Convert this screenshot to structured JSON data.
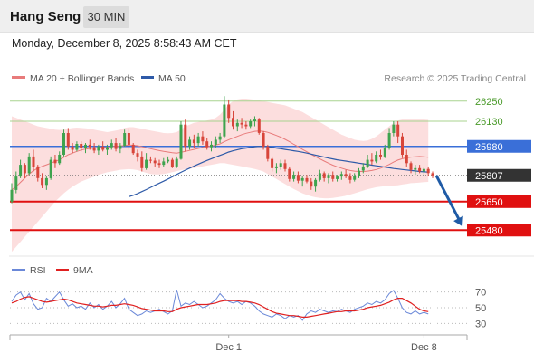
{
  "header": {
    "title": "Hang Seng",
    "timeframe": "30 MIN",
    "datetime": "Monday, December 8, 2025 8:58:43 AM CET"
  },
  "legend": {
    "ma20_bb": "MA 20 + Bollinger Bands",
    "ma50": "MA 50",
    "credit": "Research © 2025 Trading Central"
  },
  "rsi_legend": {
    "rsi": "RSI",
    "ma9": "9MA"
  },
  "colors": {
    "bull": "#3ea34e",
    "bear": "#d8453a",
    "ma20": "#e87b7b",
    "ma50": "#2e5aa8",
    "bollinger_fill": "#fbd8d8",
    "resistance": "#a8d38f",
    "pivot": "#3a6fd8",
    "support": "#e01010",
    "current": "#333333",
    "rsi": "#6a88d8",
    "rsi_ma": "#e02020",
    "arrow": "#1f5ba6"
  },
  "chart_data": [
    {
      "type": "candlestick",
      "x_labels": [
        "Dec 1",
        "Dec 8"
      ],
      "ylim": [
        25330,
        26330
      ],
      "grid": false,
      "levels": [
        {
          "value": 26250,
          "label": "26250",
          "kind": "resistance"
        },
        {
          "value": 26130,
          "label": "26130",
          "kind": "resistance"
        },
        {
          "value": 25980,
          "label": "25980",
          "kind": "pivot"
        },
        {
          "value": 25807,
          "label": "25807",
          "kind": "current"
        },
        {
          "value": 25650,
          "label": "25650",
          "kind": "support"
        },
        {
          "value": 25480,
          "label": "25480",
          "kind": "support"
        }
      ],
      "forecast": {
        "from": 25807,
        "to": 25480
      },
      "ohlc": [
        [
          25650,
          25760,
          25640,
          25720
        ],
        [
          25720,
          25830,
          25700,
          25800
        ],
        [
          25800,
          25900,
          25790,
          25870
        ],
        [
          25870,
          25880,
          25790,
          25820
        ],
        [
          25820,
          25940,
          25810,
          25920
        ],
        [
          25920,
          25960,
          25830,
          25860
        ],
        [
          25860,
          25870,
          25770,
          25790
        ],
        [
          25790,
          25820,
          25730,
          25750
        ],
        [
          25750,
          25800,
          25720,
          25790
        ],
        [
          25790,
          25920,
          25780,
          25900
        ],
        [
          25900,
          25930,
          25850,
          25880
        ],
        [
          25880,
          25950,
          25870,
          25930
        ],
        [
          25930,
          26080,
          25920,
          26060
        ],
        [
          26060,
          26090,
          25960,
          25980
        ],
        [
          25980,
          26000,
          25940,
          25960
        ],
        [
          25960,
          26010,
          25950,
          25995
        ],
        [
          25995,
          26010,
          25950,
          25970
        ],
        [
          25970,
          26000,
          25940,
          25990
        ],
        [
          25990,
          26020,
          25960,
          25975
        ],
        [
          25975,
          26000,
          25940,
          25955
        ],
        [
          25955,
          25990,
          25930,
          25980
        ],
        [
          25980,
          26010,
          25950,
          25960
        ],
        [
          25960,
          25990,
          25930,
          25975
        ],
        [
          25975,
          26020,
          25960,
          26000
        ],
        [
          26000,
          26030,
          25950,
          25965
        ],
        [
          25965,
          26000,
          25940,
          25985
        ],
        [
          25985,
          26080,
          25980,
          26060
        ],
        [
          26060,
          26090,
          25960,
          25990
        ],
        [
          25990,
          26000,
          25930,
          25940
        ],
        [
          25940,
          25960,
          25890,
          25920
        ],
        [
          25920,
          25950,
          25830,
          25850
        ],
        [
          25850,
          25940,
          25840,
          25900
        ],
        [
          25900,
          25920,
          25880,
          25895
        ],
        [
          25895,
          25910,
          25860,
          25880
        ],
        [
          25880,
          25900,
          25850,
          25870
        ],
        [
          25870,
          25910,
          25860,
          25890
        ],
        [
          25890,
          25920,
          25880,
          25900
        ],
        [
          25900,
          25910,
          25850,
          25860
        ],
        [
          25860,
          25920,
          25850,
          25905
        ],
        [
          25905,
          26130,
          25900,
          26110
        ],
        [
          26110,
          26140,
          25950,
          25980
        ],
        [
          25980,
          26040,
          25960,
          26020
        ],
        [
          26020,
          26050,
          25970,
          26000
        ],
        [
          26000,
          26060,
          25980,
          26040
        ],
        [
          26040,
          26070,
          25990,
          26010
        ],
        [
          26010,
          26030,
          25960,
          25975
        ],
        [
          25975,
          26010,
          25950,
          25990
        ],
        [
          25990,
          26040,
          25970,
          26020
        ],
        [
          26020,
          26060,
          26000,
          26040
        ],
        [
          26040,
          26280,
          26030,
          26230
        ],
        [
          26230,
          26260,
          26120,
          26150
        ],
        [
          26150,
          26190,
          26080,
          26100
        ],
        [
          26100,
          26140,
          26070,
          26120
        ],
        [
          26120,
          26150,
          26090,
          26110
        ],
        [
          26110,
          26130,
          26080,
          26100
        ],
        [
          26100,
          26140,
          26090,
          26130
        ],
        [
          26130,
          26160,
          26100,
          26140
        ],
        [
          26140,
          26150,
          26050,
          26060
        ],
        [
          26060,
          26070,
          25960,
          25980
        ],
        [
          25980,
          25990,
          25890,
          25905
        ],
        [
          25905,
          25920,
          25830,
          25850
        ],
        [
          25850,
          25880,
          25820,
          25860
        ],
        [
          25860,
          25900,
          25840,
          25880
        ],
        [
          25880,
          25900,
          25830,
          25845
        ],
        [
          25845,
          25860,
          25770,
          25785
        ],
        [
          25785,
          25830,
          25770,
          25810
        ],
        [
          25810,
          25830,
          25760,
          25775
        ],
        [
          25775,
          25800,
          25740,
          25790
        ],
        [
          25790,
          25810,
          25760,
          25770
        ],
        [
          25770,
          25790,
          25720,
          25740
        ],
        [
          25740,
          25790,
          25710,
          25780
        ],
        [
          25780,
          25840,
          25770,
          25820
        ],
        [
          25820,
          25830,
          25770,
          25790
        ],
        [
          25790,
          25820,
          25760,
          25810
        ],
        [
          25810,
          25830,
          25770,
          25785
        ],
        [
          25785,
          25810,
          25770,
          25800
        ],
        [
          25800,
          25830,
          25780,
          25815
        ],
        [
          25815,
          25840,
          25790,
          25800
        ],
        [
          25800,
          25820,
          25760,
          25780
        ],
        [
          25780,
          25820,
          25770,
          25805
        ],
        [
          25805,
          25850,
          25790,
          25835
        ],
        [
          25835,
          25880,
          25820,
          25860
        ],
        [
          25860,
          25930,
          25850,
          25900
        ],
        [
          25900,
          25940,
          25870,
          25890
        ],
        [
          25890,
          25950,
          25880,
          25930
        ],
        [
          25930,
          25960,
          25900,
          25920
        ],
        [
          25920,
          25990,
          25910,
          25970
        ],
        [
          25970,
          26090,
          25960,
          26060
        ],
        [
          26060,
          26130,
          26040,
          26110
        ],
        [
          26110,
          26130,
          26000,
          26040
        ],
        [
          26040,
          26060,
          25910,
          25930
        ],
        [
          25930,
          25960,
          25860,
          25880
        ],
        [
          25880,
          25890,
          25820,
          25840
        ],
        [
          25840,
          25870,
          25810,
          25850
        ],
        [
          25850,
          25870,
          25820,
          25830
        ],
        [
          25830,
          25860,
          25810,
          25845
        ],
        [
          25845,
          25860,
          25800,
          25820
        ],
        [
          25820,
          25830,
          25790,
          25807
        ]
      ],
      "ma20": [
        25720,
        25740,
        25765,
        25790,
        25815,
        25835,
        25850,
        25860,
        25870,
        25880,
        25890,
        25900,
        25915,
        25930,
        25940,
        25950,
        25958,
        25964,
        25968,
        25970,
        25972,
        25974,
        25975,
        25978,
        25980,
        25982,
        25985,
        25988,
        25987,
        25984,
        25978,
        25972,
        25966,
        25960,
        25955,
        25950,
        25946,
        25942,
        25940,
        25945,
        25950,
        25956,
        25962,
        25968,
        25974,
        25978,
        25982,
        25988,
        25995,
        26008,
        26020,
        26030,
        26040,
        26050,
        26058,
        26064,
        26070,
        26072,
        26070,
        26064,
        26055,
        26045,
        26035,
        26022,
        26008,
        25992,
        25978,
        25962,
        25948,
        25932,
        25918,
        25905,
        25892,
        25880,
        25868,
        25858,
        25850,
        25842,
        25836,
        25832,
        25830,
        25830,
        25832,
        25836,
        25842,
        25850,
        25860,
        25872,
        25886,
        25898,
        25906,
        25912,
        25916,
        25918,
        25920,
        25918,
        25915
      ],
      "bb_upper": [
        26160,
        26150,
        26140,
        26130,
        26120,
        26110,
        26100,
        26095,
        26090,
        26085,
        26080,
        26078,
        26080,
        26085,
        26090,
        26092,
        26090,
        26088,
        26085,
        26080,
        26075,
        26070,
        26065,
        26070,
        26075,
        26080,
        26090,
        26095,
        26095,
        26090,
        26085,
        26080,
        26075,
        26070,
        26065,
        26060,
        26058,
        26060,
        26065,
        26080,
        26100,
        26110,
        26120,
        26125,
        26130,
        26135,
        26140,
        26150,
        26170,
        26200,
        26230,
        26250,
        26260,
        26265,
        26265,
        26262,
        26258,
        26255,
        26250,
        26245,
        26240,
        26235,
        26230,
        26225,
        26215,
        26205,
        26195,
        26185,
        26170,
        26155,
        26140,
        26125,
        26110,
        26095,
        26080,
        26065,
        26050,
        26040,
        26030,
        26020,
        26015,
        26012,
        26015,
        26025,
        26040,
        26060,
        26080,
        26100,
        26120,
        26135,
        26140,
        26140,
        26140,
        26140,
        26140,
        26140,
        26138
      ],
      "bb_lower": [
        25350,
        25380,
        25410,
        25440,
        25470,
        25500,
        25530,
        25560,
        25590,
        25620,
        25650,
        25675,
        25700,
        25720,
        25740,
        25755,
        25770,
        25780,
        25790,
        25800,
        25810,
        25818,
        25825,
        25830,
        25835,
        25840,
        25842,
        25844,
        25842,
        25838,
        25830,
        25822,
        25815,
        25812,
        25812,
        25815,
        25820,
        25826,
        25832,
        25838,
        25842,
        25846,
        25850,
        25855,
        25860,
        25865,
        25870,
        25875,
        25880,
        25880,
        25875,
        25870,
        25865,
        25860,
        25855,
        25850,
        25845,
        25838,
        25830,
        25815,
        25800,
        25785,
        25770,
        25755,
        25740,
        25725,
        25712,
        25700,
        25690,
        25682,
        25676,
        25672,
        25670,
        25670,
        25672,
        25676,
        25680,
        25685,
        25692,
        25700,
        25708,
        25716,
        25724,
        25730,
        25736,
        25740,
        25742,
        25744,
        25746,
        25748,
        25752,
        25756,
        25760,
        25762,
        25764,
        25766,
        25768
      ],
      "ma50": [
        null,
        null,
        null,
        null,
        null,
        null,
        null,
        null,
        null,
        null,
        null,
        null,
        null,
        null,
        null,
        null,
        null,
        null,
        null,
        null,
        null,
        null,
        null,
        null,
        null,
        null,
        null,
        25680,
        25688,
        25698,
        25710,
        25722,
        25735,
        25748,
        25760,
        25772,
        25785,
        25798,
        25812,
        25825,
        25838,
        25850,
        25862,
        25874,
        25885,
        25896,
        25906,
        25916,
        25926,
        25936,
        25946,
        25954,
        25960,
        25966,
        25970,
        25974,
        25978,
        25980,
        25980,
        25978,
        25975,
        25970,
        25966,
        25962,
        25958,
        25954,
        25950,
        25945,
        25940,
        25934,
        25928,
        25922,
        25916,
        25910,
        25905,
        25900,
        25896,
        25892,
        25888,
        25884,
        25880,
        25876,
        25872,
        25868,
        25864,
        25860,
        25856,
        25852,
        25848,
        25845,
        25842,
        25839,
        25836,
        25833,
        25830,
        25828,
        25826
      ]
    },
    {
      "type": "line",
      "title": "RSI",
      "ylim": [
        20,
        80
      ],
      "y_ticks": [
        70,
        50,
        30
      ],
      "x_labels": [
        "Dec 1",
        "Dec 8"
      ],
      "series": [
        {
          "name": "RSI",
          "values": [
            58,
            66,
            70,
            60,
            68,
            55,
            48,
            50,
            62,
            58,
            64,
            70,
            60,
            52,
            55,
            50,
            52,
            48,
            56,
            50,
            54,
            48,
            52,
            58,
            50,
            55,
            62,
            48,
            44,
            40,
            42,
            46,
            44,
            46,
            48,
            45,
            42,
            46,
            73,
            52,
            56,
            54,
            58,
            54,
            50,
            52,
            56,
            60,
            68,
            62,
            58,
            56,
            58,
            54,
            58,
            56,
            52,
            46,
            42,
            40,
            38,
            42,
            40,
            36,
            40,
            38,
            40,
            34,
            42,
            46,
            44,
            48,
            46,
            44,
            46,
            45,
            48,
            46,
            44,
            48,
            50,
            52,
            56,
            54,
            58,
            56,
            60,
            68,
            72,
            62,
            50,
            44,
            42,
            46,
            42,
            44,
            42
          ]
        },
        {
          "name": "9MA",
          "values": [
            56,
            58,
            61,
            63,
            64,
            62,
            60,
            58,
            57,
            58,
            59,
            60,
            61,
            60,
            58,
            56,
            55,
            54,
            53,
            52,
            52,
            51,
            52,
            53,
            53,
            54,
            55,
            54,
            53,
            51,
            49,
            48,
            47,
            46,
            46,
            46,
            45,
            45,
            48,
            50,
            51,
            52,
            53,
            54,
            54,
            54,
            55,
            56,
            58,
            59,
            59,
            59,
            59,
            58,
            58,
            57,
            56,
            54,
            51,
            48,
            45,
            43,
            42,
            41,
            40,
            40,
            39,
            38,
            38,
            39,
            40,
            41,
            42,
            43,
            44,
            45,
            45,
            46,
            46,
            46,
            47,
            48,
            50,
            51,
            52,
            53,
            55,
            57,
            60,
            62,
            62,
            59,
            56,
            52,
            48,
            46,
            45
          ]
        }
      ]
    }
  ]
}
